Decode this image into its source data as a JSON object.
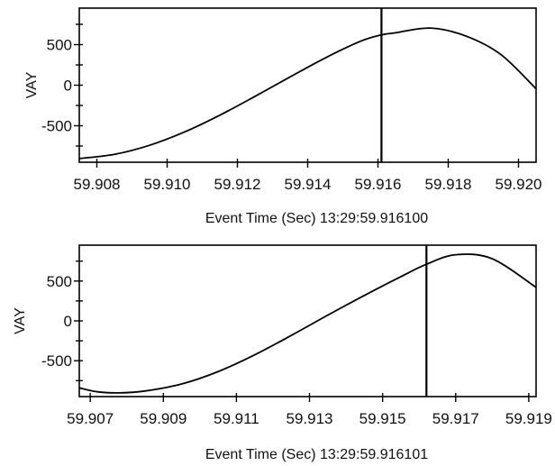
{
  "chart_data": [
    {
      "type": "line",
      "title": "",
      "xlabel": "Event Time (Sec) 13:29:59.916100",
      "ylabel": "VAY",
      "xlim": [
        59.9075,
        59.9205
      ],
      "ylim": [
        -950,
        950
      ],
      "x_ticks": [
        59.908,
        59.91,
        59.912,
        59.914,
        59.916,
        59.918,
        59.92
      ],
      "x_tick_labels": [
        "59.908",
        "59.910",
        "59.912",
        "59.914",
        "59.916",
        "59.918",
        "59.920"
      ],
      "y_ticks": [
        500,
        0,
        -500
      ],
      "y_tick_labels": [
        "500",
        "0",
        "-500"
      ],
      "cursor_x": 59.9161,
      "grid": false,
      "series": [
        {
          "x": [
            59.9075,
            59.9085,
            59.9095,
            59.9105,
            59.9115,
            59.9125,
            59.9135,
            59.9145,
            59.9155,
            59.9161,
            59.9165,
            59.9175,
            59.9185,
            59.9195,
            59.9205
          ],
          "values": [
            -904,
            -853,
            -741,
            -576,
            -370,
            -138,
            102,
            336,
            541,
            620,
            646,
            704,
            606,
            377,
            -45
          ]
        }
      ]
    },
    {
      "type": "line",
      "title": "",
      "xlabel": "Event Time (Sec) 13:29:59.916101",
      "ylabel": "VAY",
      "xlim": [
        59.9067,
        59.9192
      ],
      "ylim": [
        -950,
        950
      ],
      "x_ticks": [
        59.907,
        59.909,
        59.911,
        59.913,
        59.915,
        59.917,
        59.919
      ],
      "x_tick_labels": [
        "59.907",
        "59.909",
        "59.911",
        "59.913",
        "59.915",
        "59.917",
        "59.919"
      ],
      "y_ticks": [
        500,
        0,
        -500
      ],
      "y_tick_labels": [
        "500",
        "0",
        "-500"
      ],
      "cursor_x": 59.9162,
      "grid": false,
      "series": [
        {
          "x": [
            59.9067,
            59.9072,
            59.9078,
            59.9085,
            59.9095,
            59.9105,
            59.9115,
            59.9125,
            59.9135,
            59.9145,
            59.9155,
            59.9162,
            59.917,
            59.918,
            59.9192
          ],
          "values": [
            -840,
            -890,
            -903,
            -880,
            -792,
            -636,
            -426,
            -183,
            72,
            319,
            555,
            710,
            830,
            780,
            420
          ]
        }
      ]
    }
  ]
}
